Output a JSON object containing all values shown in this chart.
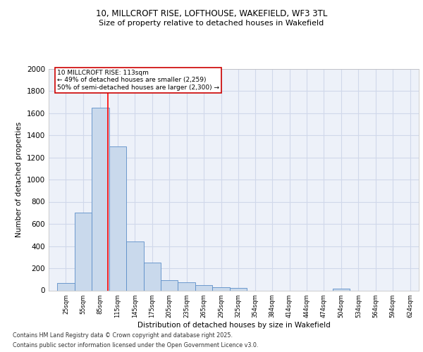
{
  "title1": "10, MILLCROFT RISE, LOFTHOUSE, WAKEFIELD, WF3 3TL",
  "title2": "Size of property relative to detached houses in Wakefield",
  "xlabel": "Distribution of detached houses by size in Wakefield",
  "ylabel": "Number of detached properties",
  "bar_edges": [
    25,
    55,
    85,
    115,
    145,
    175,
    205,
    235,
    265,
    295,
    325,
    354,
    384,
    414,
    444,
    474,
    504,
    534,
    564,
    594,
    624
  ],
  "bar_heights": [
    65,
    700,
    1650,
    1300,
    440,
    250,
    90,
    75,
    50,
    30,
    25,
    0,
    0,
    0,
    0,
    0,
    15,
    0,
    0,
    0,
    0
  ],
  "bar_color": "#c9d9ec",
  "bar_edge_color": "#5b8dc8",
  "red_line_x": 113,
  "annotation_text": "10 MILLCROFT RISE: 113sqm\n← 49% of detached houses are smaller (2,259)\n50% of semi-detached houses are larger (2,300) →",
  "annotation_box_color": "#ffffff",
  "annotation_box_edge": "#cc0000",
  "ylim": [
    0,
    2000
  ],
  "yticks": [
    0,
    200,
    400,
    600,
    800,
    1000,
    1200,
    1400,
    1600,
    1800,
    2000
  ],
  "grid_color": "#d0d8ea",
  "bg_color": "#edf1f9",
  "footer1": "Contains HM Land Registry data © Crown copyright and database right 2025.",
  "footer2": "Contains public sector information licensed under the Open Government Licence v3.0."
}
